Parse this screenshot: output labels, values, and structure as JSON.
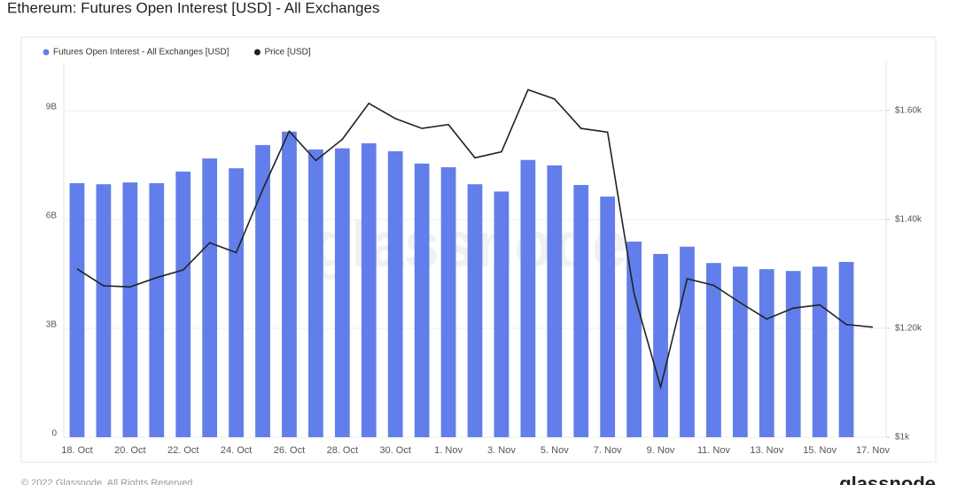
{
  "title": "Ethereum: Futures Open Interest [USD] - All Exchanges",
  "chart_data": {
    "type": "bar-line",
    "categories": [
      "18. Oct",
      null,
      "20. Oct",
      null,
      "22. Oct",
      null,
      "24. Oct",
      null,
      "26. Oct",
      null,
      "28. Oct",
      null,
      "30. Oct",
      null,
      "1. Nov",
      null,
      "3. Nov",
      null,
      "5. Nov",
      null,
      "7. Nov",
      null,
      "9. Nov",
      null,
      "11. Nov",
      null,
      "13. Nov",
      null,
      "15. Nov",
      null,
      "17. Nov"
    ],
    "series": [
      {
        "name": "Futures Open Interest - All Exchanges [USD]",
        "color": "#627eea",
        "type": "bar",
        "values": [
          7.0,
          6.97,
          7.02,
          7.0,
          7.32,
          7.68,
          7.41,
          8.05,
          8.42,
          7.93,
          7.96,
          8.1,
          7.88,
          7.54,
          7.44,
          6.97,
          6.77,
          7.64,
          7.49,
          6.95,
          6.63,
          5.39,
          5.05,
          5.25,
          4.8,
          4.7,
          4.63,
          4.58,
          4.7,
          4.83,
          null
        ]
      },
      {
        "name": "Price [USD]",
        "color": "#222222",
        "type": "line",
        "axis": "y2",
        "values": [
          1309,
          1278,
          1276,
          1293,
          1307,
          1357,
          1339,
          1455,
          1562,
          1508,
          1547,
          1613,
          1585,
          1567,
          1574,
          1513,
          1524,
          1638,
          1621,
          1567,
          1560,
          1263,
          1092,
          1291,
          1279,
          1247,
          1217,
          1237,
          1243,
          1207,
          1202
        ]
      }
    ],
    "ylim": [
      0,
      10.34
    ],
    "yticks": [
      0,
      {
        "value": 3,
        "label": "3B"
      },
      {
        "value": 6,
        "label": "6B"
      },
      {
        "value": 9,
        "label": "9B"
      }
    ],
    "y2lim": [
      1000,
      1689
    ],
    "y2ticks": [
      {
        "value": 1000,
        "label": "$1k"
      },
      {
        "value": 1200,
        "label": "$1.20k"
      },
      {
        "value": 1400,
        "label": "$1.40k"
      },
      {
        "value": 1600,
        "label": "$1.60k"
      }
    ],
    "grid": true,
    "legend": "top-left",
    "watermark": "glassnode"
  },
  "footer": {
    "copyright": "© 2022 Glassnode. All Rights Reserved.",
    "logo": "glassnode"
  }
}
